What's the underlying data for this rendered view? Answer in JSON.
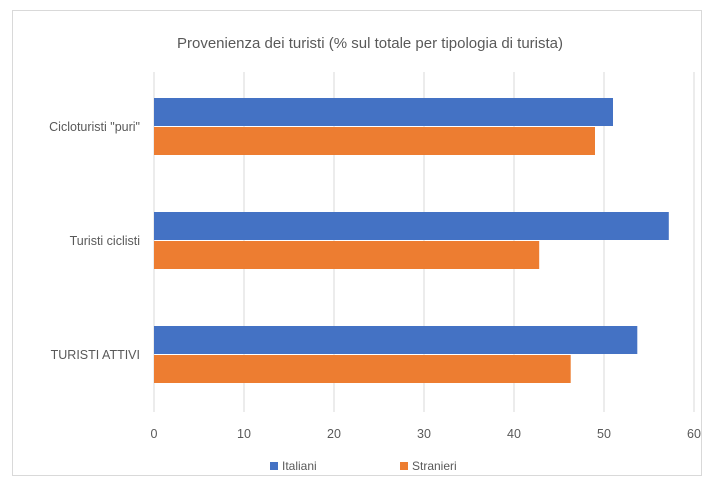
{
  "chart_data": {
    "type": "bar",
    "orientation": "horizontal",
    "title": "Provenienza dei turisti (% sul totale per tipologia di turista)",
    "categories": [
      "Cicloturisti \"puri\"",
      "Turisti ciclisti",
      "TURISTI ATTIVI"
    ],
    "series": [
      {
        "name": "Italiani",
        "color": "#4472c4",
        "values": [
          51,
          57.2,
          53.7
        ]
      },
      {
        "name": "Stranieri",
        "color": "#ed7d31",
        "values": [
          49,
          42.8,
          46.3
        ]
      }
    ],
    "xlim": [
      0,
      60
    ],
    "xticks": [
      "0",
      "10",
      "20",
      "30",
      "40",
      "50",
      "60"
    ],
    "grid": true,
    "legend_position": "bottom"
  }
}
